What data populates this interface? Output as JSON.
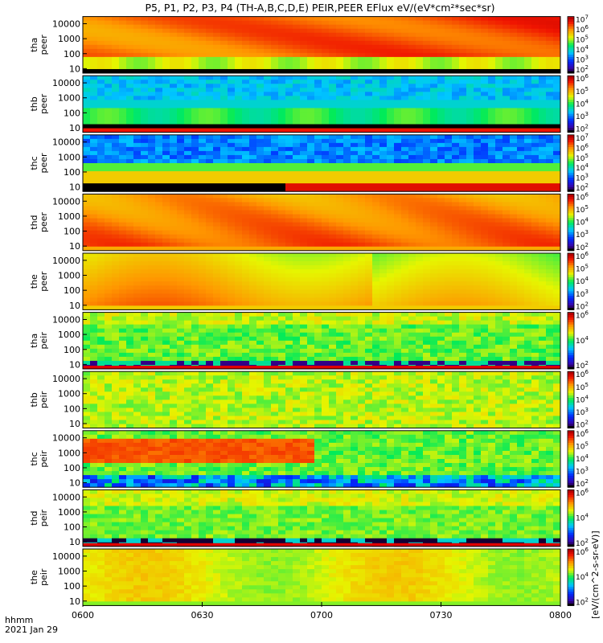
{
  "page": {
    "title": "P5, P1, P2, P3, P4 (TH-A,B,C,D,E) PEIR,PEER EFlux eV/(eV*cm²*sec*sr)",
    "colorbar_unit": "[eV/(cm^2-s-sr-eV)]"
  },
  "footer": {
    "time_label": "hhmm",
    "date_label": "2021 Jan 29"
  },
  "chart_data": {
    "type": "heatmap",
    "x_axis": {
      "ticks": [
        "0600",
        "0630",
        "0700",
        "0730",
        "0800"
      ],
      "range_minutes": [
        0,
        120
      ]
    },
    "y_axis": {
      "scale": "log",
      "ticks": [
        "10",
        "100",
        "1000",
        "10000"
      ],
      "range": [
        5,
        30000
      ]
    },
    "panels": [
      {
        "ylabel": [
          "tha",
          "peer"
        ],
        "colorbar_ticks": [
          2,
          3,
          4,
          5,
          6,
          7
        ],
        "pattern": "tha_peer",
        "strip": false
      },
      {
        "ylabel": [
          "thb",
          "peer"
        ],
        "colorbar_ticks": [
          2,
          3,
          4,
          5,
          6
        ],
        "pattern": "thb_peer",
        "strip": false
      },
      {
        "ylabel": [
          "thc",
          "peer"
        ],
        "colorbar_ticks": [
          2,
          3,
          4,
          5,
          6,
          7
        ],
        "pattern": "thc_peer",
        "strip": false
      },
      {
        "ylabel": [
          "thd",
          "peer"
        ],
        "colorbar_ticks": [
          2,
          3,
          4,
          5,
          6
        ],
        "pattern": "thd_peer",
        "strip": false
      },
      {
        "ylabel": [
          "the",
          "peer"
        ],
        "colorbar_ticks": [
          2,
          3,
          4,
          5,
          6
        ],
        "pattern": "the_peer",
        "strip": false
      },
      {
        "ylabel": [
          "tha",
          "peir"
        ],
        "colorbar_ticks": [
          2,
          4,
          6
        ],
        "pattern": "tha_peir",
        "strip": true
      },
      {
        "ylabel": [
          "thb",
          "peir"
        ],
        "colorbar_ticks": [
          2,
          3,
          4,
          5,
          6
        ],
        "pattern": "thb_peir",
        "strip": false
      },
      {
        "ylabel": [
          "thc",
          "peir"
        ],
        "colorbar_ticks": [
          2,
          3,
          4,
          5,
          6
        ],
        "pattern": "thc_peir",
        "strip": false
      },
      {
        "ylabel": [
          "thd",
          "peir"
        ],
        "colorbar_ticks": [
          2,
          4,
          6
        ],
        "pattern": "thd_peir",
        "strip": true
      },
      {
        "ylabel": [
          "the",
          "peir"
        ],
        "colorbar_ticks": [
          2,
          4,
          6
        ],
        "pattern": "the_peir",
        "strip": false
      }
    ]
  }
}
